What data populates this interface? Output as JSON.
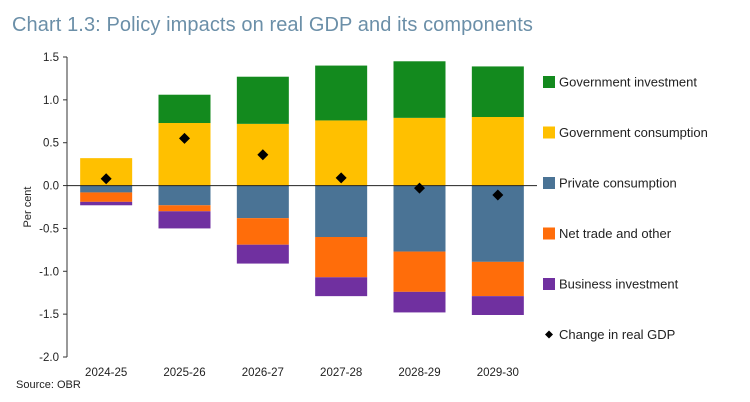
{
  "title": "Chart 1.3: Policy impacts on real GDP and its components",
  "source": "Source: OBR",
  "chart_data": {
    "type": "bar",
    "stacked": true,
    "title": "Chart 1.3: Policy impacts on real GDP and its components",
    "xlabel": "",
    "ylabel": "Per cent",
    "ylim": [
      -2.0,
      1.5
    ],
    "yticks": [
      1.5,
      1.0,
      0.5,
      0.0,
      -0.5,
      -1.0,
      -1.5,
      -2.0
    ],
    "ytick_labels": [
      "1.5",
      "1.0",
      "0.5",
      "0.0",
      "-0.5",
      "-1.0",
      "-1.5",
      "-2.0"
    ],
    "categories": [
      "2024-25",
      "2025-26",
      "2026-27",
      "2027-28",
      "2028-29",
      "2029-30"
    ],
    "series": [
      {
        "name": "Government investment",
        "color": "#138a1e",
        "values": [
          0.0,
          0.33,
          0.55,
          0.64,
          0.66,
          0.59
        ]
      },
      {
        "name": "Government consumption",
        "color": "#ffc000",
        "values": [
          0.32,
          0.73,
          0.72,
          0.76,
          0.79,
          0.8
        ]
      },
      {
        "name": "Private consumption",
        "color": "#4a7395",
        "values": [
          -0.08,
          -0.23,
          -0.38,
          -0.6,
          -0.77,
          -0.89
        ]
      },
      {
        "name": "Net trade and other",
        "color": "#ff6d0a",
        "values": [
          -0.11,
          -0.07,
          -0.31,
          -0.47,
          -0.47,
          -0.4
        ]
      },
      {
        "name": "Business investment",
        "color": "#7030a0",
        "values": [
          -0.04,
          -0.2,
          -0.22,
          -0.22,
          -0.24,
          -0.22
        ]
      }
    ],
    "line_series": {
      "name": "Change in real GDP",
      "color": "#000000",
      "marker": "diamond",
      "values": [
        0.08,
        0.55,
        0.36,
        0.09,
        -0.03,
        -0.11
      ]
    },
    "legend": [
      "Government investment",
      "Government consumption",
      "Private consumption",
      "Net trade and other",
      "Business investment",
      "Change in real GDP"
    ],
    "legend_position": "right"
  }
}
